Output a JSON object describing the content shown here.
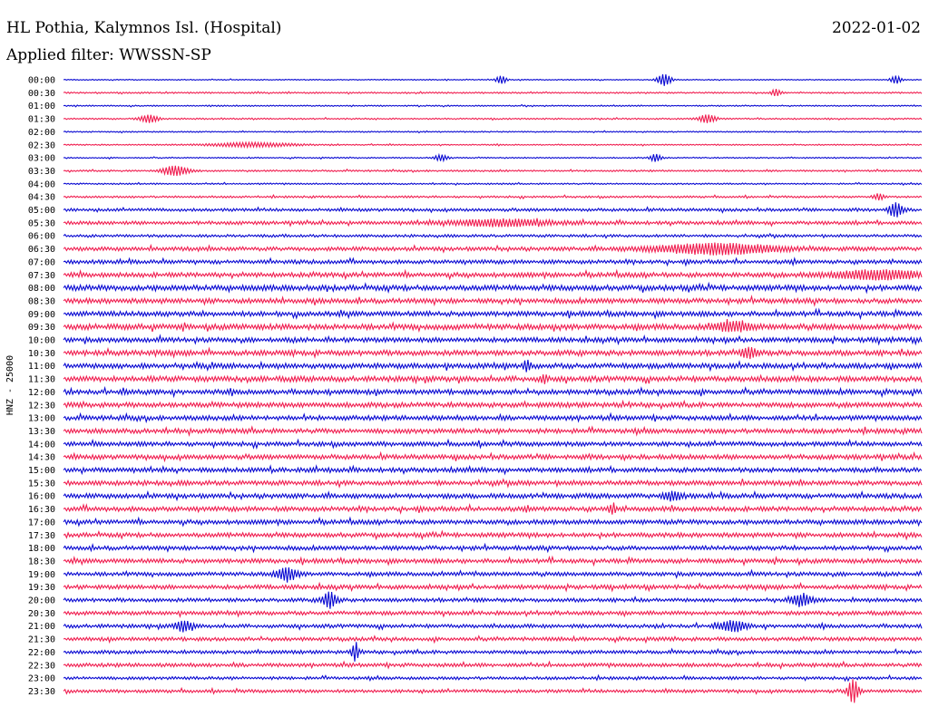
{
  "header": {
    "station": "HL Pothia, Kalymnos Isl. (Hospital)",
    "date": "2022-01-02",
    "filter": "Applied filter: WWSSN-SP"
  },
  "chart_data": {
    "type": "line",
    "title": "HL Pothia, Kalymnos Isl. (Hospital)",
    "ylabel": "HNZ - 25000",
    "row_labels": [
      "00:00",
      "00:30",
      "01:00",
      "01:30",
      "02:00",
      "02:30",
      "03:00",
      "03:30",
      "04:00",
      "04:30",
      "05:00",
      "05:30",
      "06:00",
      "06:30",
      "07:00",
      "07:30",
      "08:00",
      "08:30",
      "09:00",
      "09:30",
      "10:00",
      "10:30",
      "11:00",
      "11:30",
      "12:00",
      "12:30",
      "13:00",
      "13:30",
      "14:00",
      "14:30",
      "15:00",
      "15:30",
      "16:00",
      "16:30",
      "17:00",
      "17:30",
      "18:00",
      "18:30",
      "19:00",
      "19:30",
      "20:00",
      "20:30",
      "21:00",
      "21:30",
      "22:00",
      "22:30",
      "23:00",
      "23:30"
    ],
    "row_noise": [
      0.4,
      0.6,
      0.5,
      0.6,
      0.5,
      0.5,
      0.5,
      0.7,
      0.6,
      0.8,
      1.2,
      1.4,
      1.1,
      1.6,
      1.6,
      1.9,
      2.2,
      2.0,
      2.0,
      2.3,
      1.9,
      2.1,
      2.1,
      2.2,
      2.0,
      2.0,
      1.9,
      1.9,
      1.8,
      1.9,
      1.8,
      1.9,
      1.9,
      1.9,
      1.8,
      1.8,
      1.7,
      1.8,
      1.6,
      1.7,
      1.5,
      1.6,
      1.5,
      1.5,
      1.4,
      1.5,
      1.2,
      1.3
    ],
    "bursts": [
      {
        "row": 0,
        "x": 0.51,
        "amp": 4,
        "w": 0.006
      },
      {
        "row": 0,
        "x": 0.7,
        "amp": 6,
        "w": 0.008
      },
      {
        "row": 0,
        "x": 0.97,
        "amp": 4,
        "w": 0.006
      },
      {
        "row": 1,
        "x": 0.83,
        "amp": 3,
        "w": 0.006
      },
      {
        "row": 3,
        "x": 0.1,
        "amp": 4,
        "w": 0.01
      },
      {
        "row": 3,
        "x": 0.75,
        "amp": 4,
        "w": 0.01
      },
      {
        "row": 5,
        "x": 0.22,
        "amp": 2,
        "w": 0.05
      },
      {
        "row": 6,
        "x": 0.44,
        "amp": 3,
        "w": 0.008
      },
      {
        "row": 6,
        "x": 0.69,
        "amp": 4,
        "w": 0.006
      },
      {
        "row": 7,
        "x": 0.13,
        "amp": 5,
        "w": 0.015
      },
      {
        "row": 9,
        "x": 0.95,
        "amp": 3,
        "w": 0.006
      },
      {
        "row": 10,
        "x": 0.97,
        "amp": 7,
        "w": 0.008
      },
      {
        "row": 11,
        "x": 0.51,
        "amp": 3,
        "w": 0.06
      },
      {
        "row": 13,
        "x": 0.76,
        "amp": 5,
        "w": 0.07
      },
      {
        "row": 15,
        "x": 0.95,
        "amp": 4,
        "w": 0.05
      },
      {
        "row": 19,
        "x": 0.78,
        "amp": 4,
        "w": 0.02
      },
      {
        "row": 21,
        "x": 0.8,
        "amp": 4,
        "w": 0.01
      },
      {
        "row": 22,
        "x": 0.54,
        "amp": 5,
        "w": 0.004
      },
      {
        "row": 23,
        "x": 0.56,
        "amp": 4,
        "w": 0.004
      },
      {
        "row": 32,
        "x": 0.71,
        "amp": 4,
        "w": 0.01
      },
      {
        "row": 33,
        "x": 0.64,
        "amp": 5,
        "w": 0.004
      },
      {
        "row": 38,
        "x": 0.26,
        "amp": 6,
        "w": 0.012
      },
      {
        "row": 40,
        "x": 0.31,
        "amp": 8,
        "w": 0.008
      },
      {
        "row": 40,
        "x": 0.86,
        "amp": 5,
        "w": 0.012
      },
      {
        "row": 42,
        "x": 0.14,
        "amp": 5,
        "w": 0.01
      },
      {
        "row": 42,
        "x": 0.78,
        "amp": 5,
        "w": 0.015
      },
      {
        "row": 44,
        "x": 0.34,
        "amp": 9,
        "w": 0.004
      },
      {
        "row": 47,
        "x": 0.92,
        "amp": 12,
        "w": 0.006
      }
    ]
  },
  "colors": {
    "even_trace": "#0a0ad2",
    "odd_trace": "#f01e50",
    "text": "#000000"
  }
}
